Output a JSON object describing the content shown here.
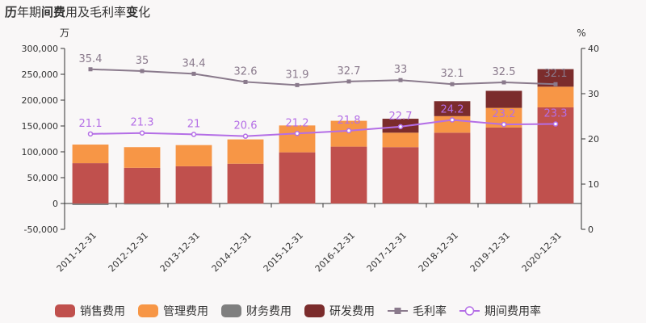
{
  "title": {
    "segments": [
      {
        "text": "历",
        "bold": true
      },
      {
        "text": "年期",
        "bold": false
      },
      {
        "text": "间费",
        "bold": true
      },
      {
        "text": "用及毛利率",
        "bold": false
      },
      {
        "text": "变",
        "bold": true
      },
      {
        "text": "化",
        "bold": false
      }
    ]
  },
  "chart_data": {
    "type": "bar",
    "stacked": true,
    "title": "历年期间费用及毛利率变化",
    "y_left_unit": "万",
    "y_right_unit": "%",
    "y_left_range": [
      -50000,
      300000
    ],
    "y_left_ticks": [
      "300,000",
      "250,000",
      "200,000",
      "150,000",
      "100,000",
      "50,000",
      "0",
      "-50,000"
    ],
    "y_left_tick_values": [
      300000,
      250000,
      200000,
      150000,
      100000,
      50000,
      0,
      -50000
    ],
    "y_right_range": [
      0,
      40
    ],
    "y_right_ticks": [
      "40",
      "30",
      "20",
      "10",
      "0"
    ],
    "y_right_tick_values": [
      40,
      30,
      20,
      10,
      0
    ],
    "categories": [
      "2011-12-31",
      "2012-12-31",
      "2013-12-31",
      "2014-12-31",
      "2015-12-31",
      "2016-12-31",
      "2017-12-31",
      "2018-12-31",
      "2019-12-31",
      "2020-12-31"
    ],
    "bar_series": [
      {
        "name": "销售费用",
        "color": "#c0504d",
        "values": [
          78000,
          69000,
          72000,
          77000,
          99000,
          110000,
          109000,
          137000,
          147000,
          186000
        ]
      },
      {
        "name": "管理费用",
        "color": "#f79646",
        "values": [
          36000,
          40000,
          41000,
          47000,
          52000,
          50000,
          28000,
          32000,
          38000,
          40000
        ]
      },
      {
        "name": "财务费用",
        "color": "#7f7f7f",
        "values": [
          -3000,
          -2000,
          -1000,
          -500,
          -500,
          -500,
          -1000,
          -1000,
          -1500,
          -1000
        ]
      },
      {
        "name": "研发费用",
        "color": "#7b2c2c",
        "values": [
          0,
          0,
          0,
          0,
          0,
          0,
          27000,
          29000,
          33000,
          34000
        ]
      }
    ],
    "line_series": [
      {
        "name": "毛利率",
        "color": "#8a7a8c",
        "marker": "square",
        "values": [
          35.4,
          35,
          34.4,
          32.6,
          31.9,
          32.7,
          33,
          32.1,
          32.5,
          32.1
        ],
        "labels": [
          "35.4",
          "35",
          "34.4",
          "32.6",
          "31.9",
          "32.7",
          "33",
          "32.1",
          "32.5",
          "32.1"
        ]
      },
      {
        "name": "期间费用率",
        "color": "#b46ee6",
        "marker": "circle",
        "values": [
          21.1,
          21.3,
          21,
          20.6,
          21.2,
          21.8,
          22.7,
          24.2,
          23.2,
          23.3
        ],
        "labels": [
          "21.1",
          "21.3",
          "21",
          "20.6",
          "21.2",
          "21.8",
          "22.7",
          "24.2",
          "23.2",
          "23.3"
        ]
      }
    ],
    "legend": "bottom"
  }
}
